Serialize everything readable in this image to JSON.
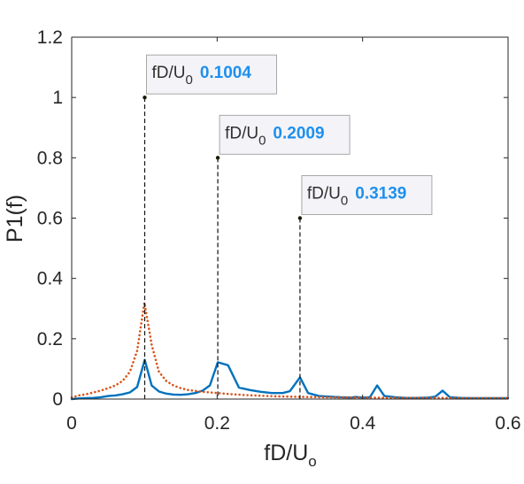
{
  "chart_data": {
    "type": "line",
    "xlabel": {
      "base": "fD/U",
      "sub": "o"
    },
    "ylabel": "P1(f)",
    "xlim": [
      0,
      0.6
    ],
    "ylim": [
      0,
      1.2
    ],
    "xticks": [
      0,
      0.2,
      0.4,
      0.6
    ],
    "xtick_labels": [
      "0",
      "0.2",
      "0.4",
      "0.6"
    ],
    "yticks": [
      0,
      0.2,
      0.4,
      0.6,
      0.8,
      1,
      1.2
    ],
    "ytick_labels": [
      "0",
      "0.2",
      "0.4",
      "0.6",
      "0.8",
      "1",
      "1.2"
    ],
    "grid": false,
    "series": [
      {
        "style": "solid",
        "color": "#0072bd",
        "x": [
          0,
          0.01,
          0.02,
          0.03,
          0.04,
          0.05,
          0.06,
          0.07,
          0.08,
          0.09,
          0.1004,
          0.11,
          0.12,
          0.13,
          0.14,
          0.15,
          0.16,
          0.17,
          0.18,
          0.19,
          0.2009,
          0.215,
          0.23,
          0.245,
          0.26,
          0.275,
          0.29,
          0.3,
          0.3139,
          0.325,
          0.34,
          0.355,
          0.37,
          0.385,
          0.39,
          0.4,
          0.41,
          0.42,
          0.43,
          0.445,
          0.46,
          0.475,
          0.49,
          0.5,
          0.51,
          0.52,
          0.535,
          0.55,
          0.565,
          0.58,
          0.6
        ],
        "y": [
          0,
          0.002,
          0.003,
          0.004,
          0.006,
          0.01,
          0.012,
          0.016,
          0.022,
          0.04,
          0.13,
          0.045,
          0.025,
          0.018,
          0.015,
          0.014,
          0.016,
          0.02,
          0.028,
          0.045,
          0.122,
          0.112,
          0.038,
          0.03,
          0.024,
          0.02,
          0.02,
          0.026,
          0.072,
          0.02,
          0.01,
          0.008,
          0.006,
          0.005,
          0.007,
          0.005,
          0.006,
          0.045,
          0.01,
          0.006,
          0.004,
          0.004,
          0.005,
          0.008,
          0.028,
          0.006,
          0.004,
          0.003,
          0.003,
          0.003,
          0.003
        ]
      },
      {
        "style": "dotted",
        "color": "#d95319",
        "x": [
          0,
          0.01,
          0.02,
          0.03,
          0.04,
          0.05,
          0.06,
          0.07,
          0.08,
          0.09,
          0.1,
          0.11,
          0.12,
          0.13,
          0.14,
          0.15,
          0.16,
          0.18,
          0.2,
          0.22,
          0.24,
          0.26,
          0.28,
          0.3,
          0.32,
          0.35,
          0.4,
          0.45,
          0.5,
          0.55,
          0.6
        ],
        "y": [
          0.005,
          0.012,
          0.016,
          0.022,
          0.028,
          0.036,
          0.045,
          0.06,
          0.09,
          0.16,
          0.32,
          0.18,
          0.09,
          0.06,
          0.045,
          0.036,
          0.03,
          0.024,
          0.02,
          0.016,
          0.013,
          0.011,
          0.009,
          0.008,
          0.007,
          0.006,
          0.005,
          0.004,
          0.004,
          0.003,
          0.003
        ]
      }
    ],
    "annotations": [
      {
        "x": 0.1004,
        "y": 1.0,
        "label": "fD/U",
        "label_sub": "0",
        "value": "0.1004"
      },
      {
        "x": 0.2009,
        "y": 0.8,
        "label": "fD/U",
        "label_sub": "0",
        "value": "0.2009"
      },
      {
        "x": 0.3139,
        "y": 0.6,
        "label": "fD/U",
        "label_sub": "0",
        "value": "0.3139"
      }
    ]
  }
}
